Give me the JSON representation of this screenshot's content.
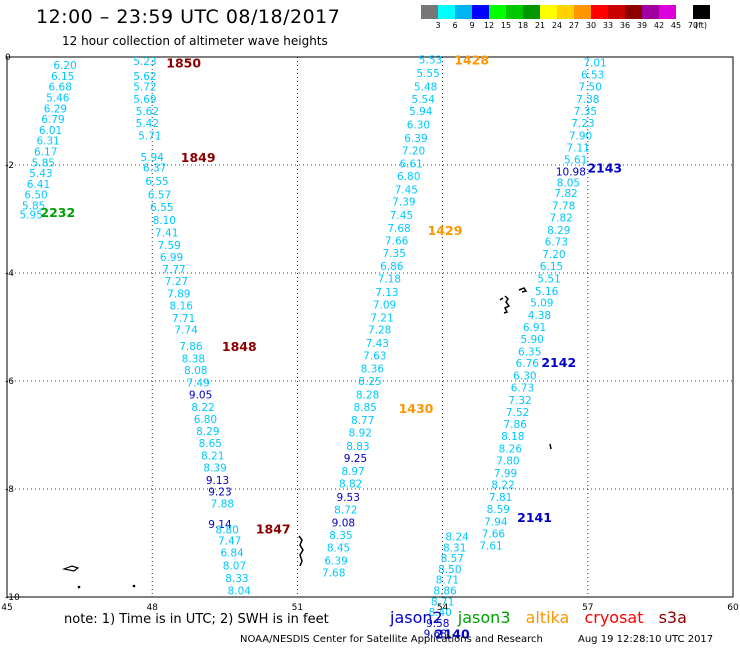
{
  "header": {
    "title": "12:00 – 23:59 UTC 08/18/2017",
    "subtitle": "12 hour collection of altimeter wave heights"
  },
  "legend": {
    "unit": "(ft)",
    "bins": [
      {
        "label": "3",
        "color": "#777777"
      },
      {
        "label": "6",
        "color": "#00ffff"
      },
      {
        "label": "9",
        "color": "#00b4f0"
      },
      {
        "label": "12",
        "color": "#0000ff"
      },
      {
        "label": "15",
        "color": "#00ff00"
      },
      {
        "label": "18",
        "color": "#00c800"
      },
      {
        "label": "21",
        "color": "#009600"
      },
      {
        "label": "24",
        "color": "#ffff00"
      },
      {
        "label": "27",
        "color": "#ffd200"
      },
      {
        "label": "30",
        "color": "#ff9600"
      },
      {
        "label": "33",
        "color": "#ff0000"
      },
      {
        "label": "36",
        "color": "#c80000"
      },
      {
        "label": "39",
        "color": "#8c0000"
      },
      {
        "label": "42",
        "color": "#a000a0"
      },
      {
        "label": "45",
        "color": "#dc00dc"
      },
      {
        "label": "70",
        "color": "#ffffff"
      },
      {
        "label": "",
        "color": "#000000"
      }
    ]
  },
  "colors": {
    "value_cyan": "#00c8ff",
    "value_blue": "#0000c8",
    "jason2": "#0000c8",
    "jason3": "#00a000",
    "altika": "#ff9600",
    "cryosat": "#ff0000",
    "s3a": "#8c0000"
  },
  "map": {
    "lon_ticks": [
      "45",
      "48",
      "51",
      "54",
      "57",
      "60"
    ],
    "lat_ticks": [
      "0",
      "-2",
      "-4",
      "-6",
      "-8",
      "-10"
    ],
    "passes": [
      {
        "time": "2232",
        "sat": "jason3",
        "lon": 46.05,
        "lat": -2.87,
        "points": [
          {
            "lon": 46.2,
            "lat": -0.15,
            "v": "6.20"
          },
          {
            "lon": 46.15,
            "lat": -0.35,
            "v": "6.15"
          },
          {
            "lon": 46.1,
            "lat": -0.55,
            "v": "6.68"
          },
          {
            "lon": 46.05,
            "lat": -0.75,
            "v": "5.46"
          },
          {
            "lon": 46.0,
            "lat": -0.95,
            "v": "6.29"
          },
          {
            "lon": 45.95,
            "lat": -1.15,
            "v": "6.79"
          },
          {
            "lon": 45.9,
            "lat": -1.35,
            "v": "6.01"
          },
          {
            "lon": 45.85,
            "lat": -1.55,
            "v": "6.31"
          },
          {
            "lon": 45.8,
            "lat": -1.75,
            "v": "6.17"
          },
          {
            "lon": 45.75,
            "lat": -1.95,
            "v": "5.85"
          },
          {
            "lon": 45.7,
            "lat": -2.15,
            "v": "5.43"
          },
          {
            "lon": 45.65,
            "lat": -2.35,
            "v": "6.41"
          },
          {
            "lon": 45.6,
            "lat": -2.55,
            "v": "6.50"
          },
          {
            "lon": 45.55,
            "lat": -2.75,
            "v": "5.85"
          },
          {
            "lon": 45.5,
            "lat": -2.92,
            "v": "5.95"
          }
        ]
      },
      {
        "time": "1850",
        "sat": "s3a",
        "lon": 48.65,
        "lat": -0.1,
        "points": [
          {
            "lon": 47.85,
            "lat": -0.07,
            "v": "5.23"
          },
          {
            "lon": 47.85,
            "lat": -0.35,
            "v": "5.62"
          },
          {
            "lon": 47.85,
            "lat": -0.55,
            "v": "5.72"
          },
          {
            "lon": 47.85,
            "lat": -0.78,
            "v": "5.69"
          },
          {
            "lon": 47.9,
            "lat": -1.0,
            "v": "5.62"
          },
          {
            "lon": 47.9,
            "lat": -1.22,
            "v": "5.42"
          },
          {
            "lon": 47.95,
            "lat": -1.45,
            "v": "5.71"
          }
        ]
      },
      {
        "time": "1849",
        "sat": "s3a",
        "lon": 48.95,
        "lat": -1.85,
        "points": [
          {
            "lon": 48.0,
            "lat": -1.85,
            "v": "5.94"
          },
          {
            "lon": 48.05,
            "lat": -2.05,
            "v": "6.37"
          },
          {
            "lon": 48.1,
            "lat": -2.3,
            "v": "6.55"
          },
          {
            "lon": 48.15,
            "lat": -2.55,
            "v": "6.57"
          },
          {
            "lon": 48.2,
            "lat": -2.78,
            "v": "6.55"
          },
          {
            "lon": 48.25,
            "lat": -3.02,
            "v": "8.10"
          },
          {
            "lon": 48.3,
            "lat": -3.25,
            "v": "7.41"
          },
          {
            "lon": 48.35,
            "lat": -3.48,
            "v": "7.59"
          },
          {
            "lon": 48.4,
            "lat": -3.7,
            "v": "6.99"
          },
          {
            "lon": 48.45,
            "lat": -3.93,
            "v": "7.77"
          },
          {
            "lon": 48.5,
            "lat": -4.15,
            "v": "7.27"
          },
          {
            "lon": 48.55,
            "lat": -4.38,
            "v": "7.89"
          },
          {
            "lon": 48.6,
            "lat": -4.6,
            "v": "8.16"
          },
          {
            "lon": 48.65,
            "lat": -4.83,
            "v": "7.71"
          },
          {
            "lon": 48.7,
            "lat": -5.05,
            "v": "7.74"
          }
        ]
      },
      {
        "time": "1848",
        "sat": "s3a",
        "lon": 49.8,
        "lat": -5.35,
        "points": [
          {
            "lon": 48.8,
            "lat": -5.35,
            "v": "7.86"
          },
          {
            "lon": 48.85,
            "lat": -5.58,
            "v": "8.38"
          },
          {
            "lon": 48.9,
            "lat": -5.8,
            "v": "8.08"
          },
          {
            "lon": 48.95,
            "lat": -6.03,
            "v": "7.49"
          },
          {
            "lon": 49.0,
            "lat": -6.25,
            "v": "9.05"
          },
          {
            "lon": 49.05,
            "lat": -6.48,
            "v": "8.22"
          },
          {
            "lon": 49.1,
            "lat": -6.7,
            "v": "6.80"
          },
          {
            "lon": 49.15,
            "lat": -6.93,
            "v": "8.29"
          },
          {
            "lon": 49.2,
            "lat": -7.15,
            "v": "8.65"
          },
          {
            "lon": 49.25,
            "lat": -7.38,
            "v": "8.21"
          },
          {
            "lon": 49.3,
            "lat": -7.6,
            "v": "8.39"
          },
          {
            "lon": 49.35,
            "lat": -7.83,
            "v": "9.13"
          },
          {
            "lon": 49.4,
            "lat": -8.05,
            "v": "9.23"
          },
          {
            "lon": 49.45,
            "lat": -8.27,
            "v": "7.88"
          }
        ]
      },
      {
        "time": "1847",
        "sat": "s3a",
        "lon": 50.5,
        "lat": -8.73,
        "points": [
          {
            "lon": 49.4,
            "lat": -8.65,
            "v": "9.14"
          },
          {
            "lon": 49.55,
            "lat": -8.75,
            "v": "8.80"
          },
          {
            "lon": 49.6,
            "lat": -8.95,
            "v": "7.47"
          },
          {
            "lon": 49.65,
            "lat": -9.18,
            "v": "6.84"
          },
          {
            "lon": 49.7,
            "lat": -9.42,
            "v": "8.07"
          },
          {
            "lon": 49.75,
            "lat": -9.65,
            "v": "8.33"
          },
          {
            "lon": 49.8,
            "lat": -9.88,
            "v": "8.04"
          }
        ]
      },
      {
        "time": "1428",
        "sat": "altika",
        "lon": 54.6,
        "lat": -0.05,
        "points": [
          {
            "lon": 53.75,
            "lat": -0.05,
            "v": "5.53"
          },
          {
            "lon": 53.7,
            "lat": -0.3,
            "v": "5.55"
          },
          {
            "lon": 53.65,
            "lat": -0.55,
            "v": "5.48"
          },
          {
            "lon": 53.6,
            "lat": -0.78,
            "v": "5.54"
          },
          {
            "lon": 53.55,
            "lat": -1.0,
            "v": "5.94"
          },
          {
            "lon": 53.5,
            "lat": -1.25,
            "v": "6.30"
          },
          {
            "lon": 53.45,
            "lat": -1.5,
            "v": "6.39"
          },
          {
            "lon": 53.4,
            "lat": -1.73,
            "v": "7.20"
          },
          {
            "lon": 53.35,
            "lat": -1.97,
            "v": "6.61"
          },
          {
            "lon": 53.3,
            "lat": -2.2,
            "v": "6.80"
          },
          {
            "lon": 53.25,
            "lat": -2.45,
            "v": "7.45"
          },
          {
            "lon": 53.2,
            "lat": -2.68,
            "v": "7.39"
          },
          {
            "lon": 53.15,
            "lat": -2.93,
            "v": "7.45"
          },
          {
            "lon": 53.1,
            "lat": -3.17,
            "v": "7.68"
          }
        ]
      },
      {
        "time": "1429",
        "sat": "altika",
        "lon": 54.05,
        "lat": -3.2,
        "points": [
          {
            "lon": 53.05,
            "lat": -3.4,
            "v": "7.66"
          },
          {
            "lon": 53.0,
            "lat": -3.63,
            "v": "7.35"
          },
          {
            "lon": 52.95,
            "lat": -3.87,
            "v": "6.86"
          },
          {
            "lon": 52.9,
            "lat": -4.1,
            "v": "7.18"
          },
          {
            "lon": 52.85,
            "lat": -4.35,
            "v": "7.13"
          },
          {
            "lon": 52.8,
            "lat": -4.58,
            "v": "7.09"
          },
          {
            "lon": 52.75,
            "lat": -4.82,
            "v": "7.21"
          },
          {
            "lon": 52.7,
            "lat": -5.05,
            "v": "7.28"
          },
          {
            "lon": 52.65,
            "lat": -5.3,
            "v": "7.43"
          },
          {
            "lon": 52.6,
            "lat": -5.53,
            "v": "7.63"
          },
          {
            "lon": 52.55,
            "lat": -5.77,
            "v": "8.36"
          },
          {
            "lon": 52.5,
            "lat": -6.0,
            "v": "8.25"
          },
          {
            "lon": 52.45,
            "lat": -6.25,
            "v": "8.28"
          },
          {
            "lon": 52.4,
            "lat": -6.48,
            "v": "8.85"
          }
        ]
      },
      {
        "time": "1430",
        "sat": "altika",
        "lon": 53.45,
        "lat": -6.5,
        "points": [
          {
            "lon": 52.35,
            "lat": -6.72,
            "v": "8.77"
          },
          {
            "lon": 52.3,
            "lat": -6.95,
            "v": "8.92"
          },
          {
            "lon": 52.25,
            "lat": -7.2,
            "v": "8.83"
          },
          {
            "lon": 52.2,
            "lat": -7.43,
            "v": "9.25"
          },
          {
            "lon": 52.15,
            "lat": -7.67,
            "v": "8.97"
          },
          {
            "lon": 52.1,
            "lat": -7.9,
            "v": "8.82"
          },
          {
            "lon": 52.05,
            "lat": -8.15,
            "v": "9.53"
          },
          {
            "lon": 52.0,
            "lat": -8.38,
            "v": "8.72"
          },
          {
            "lon": 51.95,
            "lat": -8.62,
            "v": "9.08"
          },
          {
            "lon": 51.9,
            "lat": -8.85,
            "v": "8.35"
          },
          {
            "lon": 51.85,
            "lat": -9.08,
            "v": "8.45"
          },
          {
            "lon": 51.8,
            "lat": -9.32,
            "v": "6.39"
          },
          {
            "lon": 51.75,
            "lat": -9.55,
            "v": "7.68"
          }
        ]
      },
      {
        "time": "2143",
        "sat": "jason2",
        "lon": 57.35,
        "lat": -2.05,
        "points": [
          {
            "lon": 57.15,
            "lat": -0.1,
            "v": "7.01"
          },
          {
            "lon": 57.1,
            "lat": -0.32,
            "v": "6.53"
          },
          {
            "lon": 57.05,
            "lat": -0.55,
            "v": "7.50"
          },
          {
            "lon": 57.0,
            "lat": -0.78,
            "v": "7.38"
          },
          {
            "lon": 56.95,
            "lat": -1.0,
            "v": "7.35"
          },
          {
            "lon": 56.9,
            "lat": -1.22,
            "v": "7.23"
          },
          {
            "lon": 56.85,
            "lat": -1.45,
            "v": "7.90"
          },
          {
            "lon": 56.8,
            "lat": -1.68,
            "v": "7.11"
          },
          {
            "lon": 56.75,
            "lat": -1.9,
            "v": "5.61"
          },
          {
            "lon": 56.65,
            "lat": -2.12,
            "v": "10.98"
          },
          {
            "lon": 56.6,
            "lat": -2.32,
            "v": "8.05"
          },
          {
            "lon": 56.55,
            "lat": -2.52,
            "v": "7.82"
          },
          {
            "lon": 56.5,
            "lat": -2.75,
            "v": "7.78"
          },
          {
            "lon": 56.45,
            "lat": -2.97,
            "v": "7.82"
          },
          {
            "lon": 56.4,
            "lat": -3.2,
            "v": "8.29"
          },
          {
            "lon": 56.35,
            "lat": -3.42,
            "v": "6.73"
          },
          {
            "lon": 56.3,
            "lat": -3.65,
            "v": "7.20"
          },
          {
            "lon": 56.25,
            "lat": -3.87,
            "v": "6.15"
          },
          {
            "lon": 56.2,
            "lat": -4.1,
            "v": "5.51"
          },
          {
            "lon": 56.15,
            "lat": -4.33,
            "v": "5.16"
          },
          {
            "lon": 56.05,
            "lat": -4.55,
            "v": "5.09"
          },
          {
            "lon": 56.0,
            "lat": -4.78,
            "v": "4.38"
          },
          {
            "lon": 55.9,
            "lat": -5.0,
            "v": "6.91"
          },
          {
            "lon": 55.85,
            "lat": -5.22,
            "v": "5.90"
          },
          {
            "lon": 55.8,
            "lat": -5.45,
            "v": "6.35"
          }
        ]
      },
      {
        "time": "2142",
        "sat": "jason2",
        "lon": 56.4,
        "lat": -5.65,
        "points": [
          {
            "lon": 55.75,
            "lat": -5.67,
            "v": "6.76"
          },
          {
            "lon": 55.7,
            "lat": -5.9,
            "v": "6.30"
          },
          {
            "lon": 55.65,
            "lat": -6.12,
            "v": "6.73"
          },
          {
            "lon": 55.6,
            "lat": -6.35,
            "v": "7.32"
          },
          {
            "lon": 55.55,
            "lat": -6.57,
            "v": "7.52"
          },
          {
            "lon": 55.5,
            "lat": -6.8,
            "v": "7.86"
          },
          {
            "lon": 55.45,
            "lat": -7.02,
            "v": "8.18"
          },
          {
            "lon": 55.4,
            "lat": -7.25,
            "v": "8.26"
          },
          {
            "lon": 55.35,
            "lat": -7.47,
            "v": "7.80"
          },
          {
            "lon": 55.3,
            "lat": -7.7,
            "v": "7.99"
          },
          {
            "lon": 55.25,
            "lat": -7.92,
            "v": "8.22"
          },
          {
            "lon": 55.2,
            "lat": -8.15,
            "v": "7.81"
          },
          {
            "lon": 55.15,
            "lat": -8.37,
            "v": "8.59"
          },
          {
            "lon": 55.1,
            "lat": -8.6,
            "v": "7.94"
          },
          {
            "lon": 55.05,
            "lat": -8.82,
            "v": "7.66"
          },
          {
            "lon": 55.0,
            "lat": -9.05,
            "v": "7.61"
          }
        ]
      },
      {
        "time": "2141",
        "sat": "jason2",
        "lon": 55.9,
        "lat": -8.52,
        "points": [
          {
            "lon": 54.3,
            "lat": -8.88,
            "v": "8.24"
          },
          {
            "lon": 54.25,
            "lat": -9.08,
            "v": "8.31"
          },
          {
            "lon": 54.2,
            "lat": -9.28,
            "v": "8.57"
          },
          {
            "lon": 54.15,
            "lat": -9.48,
            "v": "8.50"
          },
          {
            "lon": 54.1,
            "lat": -9.68,
            "v": "8.71"
          },
          {
            "lon": 54.05,
            "lat": -9.88,
            "v": "8.86"
          },
          {
            "lon": 54.0,
            "lat": -10.08,
            "v": "8.71"
          },
          {
            "lon": 53.95,
            "lat": -10.28,
            "v": "8.40"
          },
          {
            "lon": 53.9,
            "lat": -10.48,
            "v": "9.58"
          },
          {
            "lon": 53.85,
            "lat": -10.68,
            "v": "9.68"
          }
        ]
      },
      {
        "time": "2140",
        "sat": "jason2",
        "lon": 54.2,
        "lat": -10.68,
        "points": []
      }
    ]
  },
  "note": "note: 1) Time is in UTC; 2) SWH is in feet",
  "satellites": [
    "jason2",
    "jason3",
    "altika",
    "cryosat",
    "s3a"
  ],
  "footer": "NOAA/NESDIS Center for Satellite Applications and Research",
  "timestamp": "Aug 19 12:28:10 UTC 2017"
}
